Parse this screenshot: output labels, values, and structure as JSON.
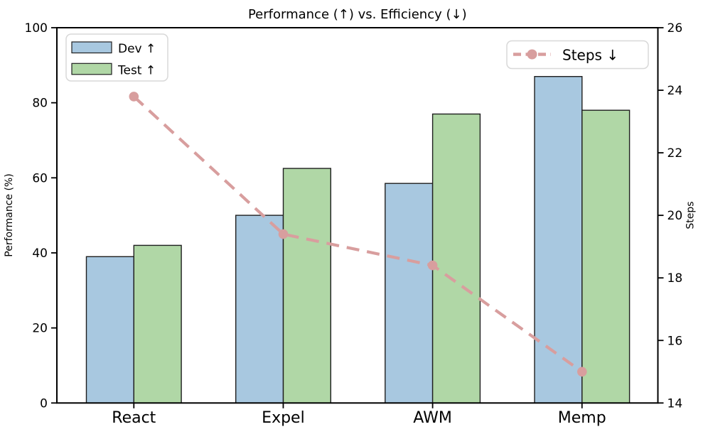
{
  "chart_data": {
    "type": "bar",
    "subtype": "grouped-bars-with-line-overlay",
    "title": "Performance (↑) vs. Efficiency (↓)",
    "categories": [
      "React",
      "Expel",
      "AWM",
      "Memp"
    ],
    "bar_series": [
      {
        "name": "Dev ↑",
        "color": "#a8c8e0",
        "values": [
          39,
          50,
          58.5,
          87
        ]
      },
      {
        "name": "Test ↑",
        "color": "#b0d7a6",
        "values": [
          42,
          62.5,
          77,
          78
        ]
      }
    ],
    "line_series": [
      {
        "name": "Steps ↓",
        "color": "#d89e9e",
        "style": "dashed",
        "marker": "circle",
        "axis": "right",
        "values": [
          23.8,
          19.4,
          18.4,
          15.0
        ]
      }
    ],
    "axes": {
      "left": {
        "label": "Performance (%)",
        "range": [
          0,
          100
        ],
        "ticks": [
          "0",
          "20",
          "40",
          "60",
          "80",
          "100"
        ]
      },
      "right": {
        "label": "Steps",
        "range": [
          14,
          26
        ],
        "ticks": [
          "14",
          "16",
          "18",
          "20",
          "22",
          "24",
          "26"
        ]
      }
    },
    "legend_bars": {
      "position": "upper-left",
      "entries": [
        "Dev ↑",
        "Test ↑"
      ]
    },
    "legend_line": {
      "position": "upper-right",
      "entries": [
        "Steps ↓"
      ]
    },
    "grid": false,
    "colors": {
      "bar_edge": "#1f1f1f",
      "spine": "#000000",
      "legend_border": "#d8d8d8",
      "background": "#ffffff"
    }
  }
}
